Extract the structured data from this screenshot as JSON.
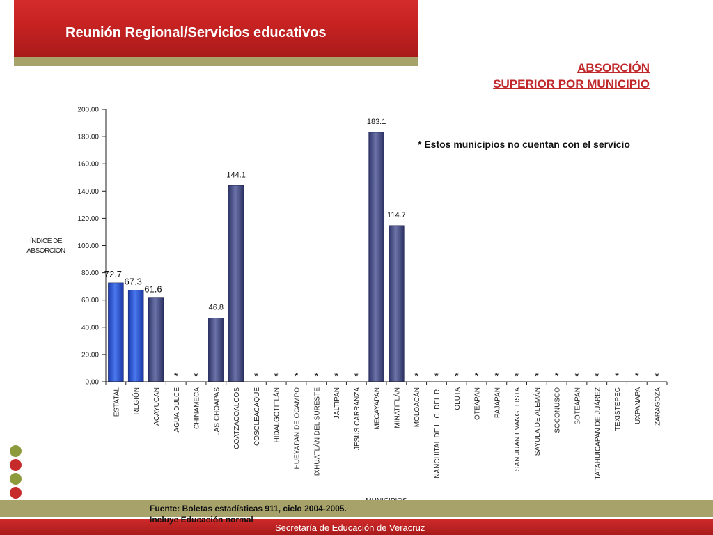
{
  "header": {
    "title": "Reunión Regional/Servicios educativos"
  },
  "chart_title": {
    "line1": "ABSORCIÓN",
    "line2": "SUPERIOR POR MUNICIPIO"
  },
  "note": "* Estos municipios no cuentan con el servicio",
  "footer": {
    "source_line1": "Fuente: Boletas estadísticas 911, ciclo 2004-2005.",
    "source_line2": "Incluye Educación normal",
    "organization": "Secretaría de Educación de Veracruz"
  },
  "colors": {
    "header_red": "#c62222",
    "olive": "#a6a26a",
    "bar_blue": "#2f53c9",
    "bar_purple": "#464d7e",
    "title_red": "#c0282b"
  },
  "chart_data": {
    "type": "bar",
    "ylabel_line1": "ÍNDICE DE",
    "ylabel_line2": "ABSORCIÓN",
    "xlabel": "MUNICIPIOS",
    "ylim": [
      0,
      200
    ],
    "yticks": [
      "0.00",
      "20.00",
      "40.00",
      "60.00",
      "80.00",
      "100.00",
      "120.00",
      "140.00",
      "160.00",
      "180.00",
      "200.00"
    ],
    "no_service_marker": "*",
    "categories": [
      "ESTATAL",
      "REGIÓN",
      "ACAYUCAN",
      "AGUA DULCE",
      "CHINAMECA",
      "LAS CHOAPAS",
      "COATZACOALCOS",
      "COSOLEACAQUE",
      "HIDALGOTITLÁN",
      "HUEYAPAN DE OCAMPO",
      "IXHUATLÁN DEL SURESTE",
      "JALTIPAN",
      "JESUS CARRANZA",
      "MECAYAPAN",
      "MINATITLÁN",
      "MOLOACÁN",
      "NANCHITAL DE L. C. DEL R.",
      "OLUTA",
      "OTEAPAN",
      "PAJAPAN",
      "SAN JUAN EVANGELISTA",
      "SAYULA DE ALEMÁN",
      "SOCONUSCO",
      "SOTEAPAN",
      "TATAHUICAPAN DE JUÁREZ",
      "TEXISTEPEC",
      "UXPANAPA",
      "ZARAGOZA"
    ],
    "values": [
      72.7,
      67.3,
      61.6,
      null,
      null,
      46.8,
      144.1,
      null,
      null,
      null,
      null,
      null,
      null,
      183.1,
      114.7,
      null,
      null,
      null,
      null,
      null,
      null,
      null,
      null,
      null,
      null,
      null,
      null,
      null
    ],
    "value_labels": [
      "72.7",
      "67.3",
      "61.6",
      "",
      "",
      "46.8",
      "144.1",
      "",
      "",
      "",
      "",
      "",
      "",
      "183.1",
      "114.7",
      "",
      "",
      "",
      "",
      "",
      "",
      "",
      "",
      "",
      "",
      "",
      "",
      ""
    ],
    "bar_colors": [
      "blue",
      "blue",
      "purple",
      "",
      "",
      "purple",
      "purple",
      "",
      "",
      "",
      "",
      "",
      "",
      "purple",
      "purple",
      "",
      "",
      "",
      "",
      "",
      "",
      "",
      "",
      "",
      "",
      "",
      "",
      ""
    ]
  }
}
